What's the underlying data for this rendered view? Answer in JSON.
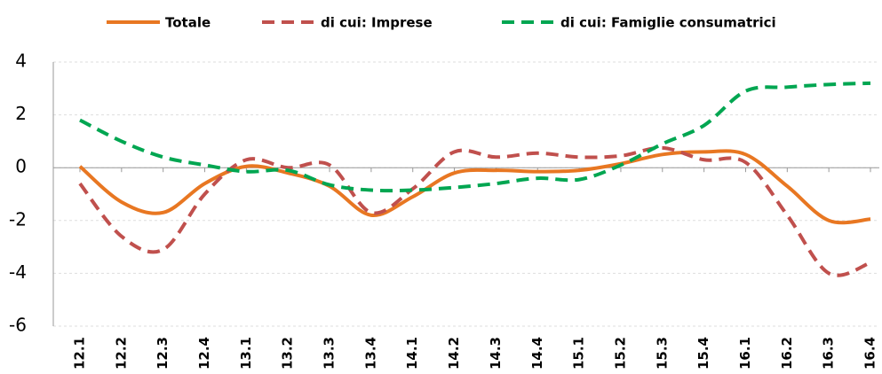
{
  "chart_data": {
    "type": "line",
    "categories": [
      "12.1",
      "12.2",
      "12.3",
      "12.4",
      "13.1",
      "13.2",
      "13.3",
      "13.4",
      "14.1",
      "14.2",
      "14.3",
      "14.4",
      "15.1",
      "15.2",
      "15.3",
      "15.4",
      "16.1",
      "16.2",
      "16.3",
      "16.4"
    ],
    "series": [
      {
        "name": "Totale",
        "color": "#E87722",
        "dash": false,
        "values": [
          0.05,
          -1.3,
          -1.7,
          -0.6,
          0.05,
          -0.2,
          -0.7,
          -1.8,
          -1.1,
          -0.2,
          -0.1,
          -0.15,
          -0.1,
          0.15,
          0.5,
          0.6,
          0.5,
          -0.7,
          -2.0,
          -1.95
        ]
      },
      {
        "name": "di cui: Imprese",
        "color": "#C0504D",
        "dash": true,
        "values": [
          -0.6,
          -2.6,
          -3.1,
          -1.0,
          0.3,
          0.0,
          0.1,
          -1.7,
          -0.8,
          0.6,
          0.4,
          0.55,
          0.4,
          0.45,
          0.75,
          0.3,
          0.2,
          -1.8,
          -4.0,
          -3.6
        ]
      },
      {
        "name": "di cui: Famiglie consumatrici",
        "color": "#00A651",
        "dash": true,
        "values": [
          1.8,
          1.0,
          0.4,
          0.1,
          -0.15,
          -0.1,
          -0.65,
          -0.85,
          -0.85,
          -0.75,
          -0.6,
          -0.4,
          -0.45,
          0.1,
          0.9,
          1.6,
          2.9,
          3.05,
          3.15,
          3.2
        ]
      }
    ],
    "ylim": [
      -6,
      4
    ],
    "yticks": [
      -6,
      -4,
      -2,
      0,
      2,
      4
    ],
    "grid": true,
    "legend": "top"
  }
}
